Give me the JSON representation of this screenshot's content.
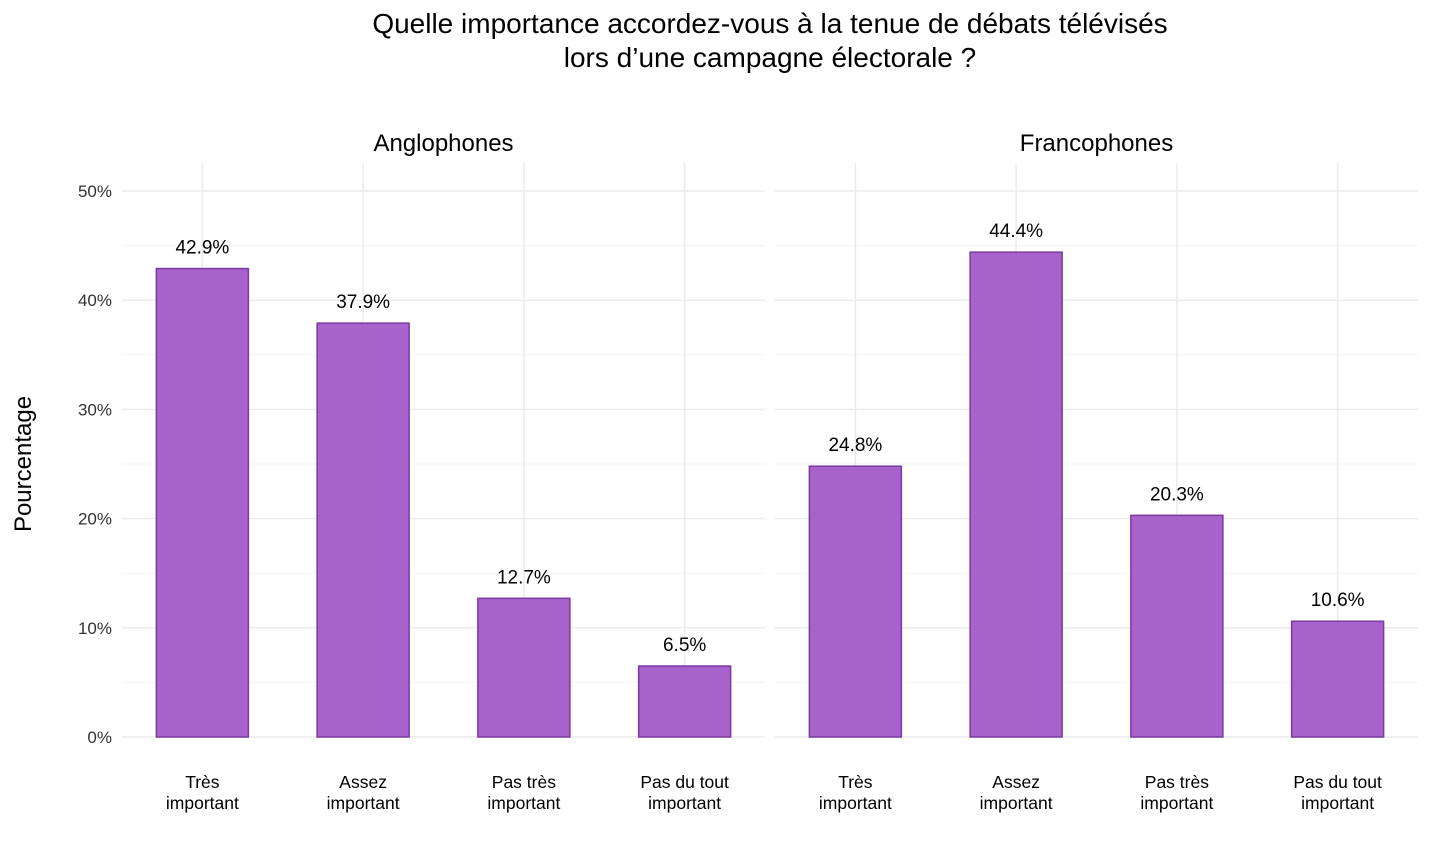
{
  "chart_data": {
    "type": "bar",
    "title": "Quelle importance accordez-vous à la tenue de débats télévisés\nlors d’une campagne électorale ?",
    "ylabel": "Pourcentage",
    "xlabel": "",
    "ylim": [
      0,
      50
    ],
    "yticks": [
      "0%",
      "10%",
      "20%",
      "30%",
      "40%",
      "50%"
    ],
    "ytick_values": [
      0,
      10,
      20,
      30,
      40,
      50
    ],
    "grid": true,
    "categories": [
      "Très\nimportant",
      "Assez\nimportant",
      "Pas très\nimportant",
      "Pas du tout\nimportant"
    ],
    "colors": {
      "fill": "#a862cc",
      "stroke": "#7a3aa0",
      "grid": "#ebebeb"
    },
    "panels": [
      {
        "name": "Anglophones",
        "values": [
          42.9,
          37.9,
          12.7,
          6.5
        ],
        "labels": [
          "42.9%",
          "37.9%",
          "12.7%",
          "6.5%"
        ]
      },
      {
        "name": "Francophones",
        "values": [
          24.8,
          44.4,
          20.3,
          10.6
        ],
        "labels": [
          "24.8%",
          "44.4%",
          "20.3%",
          "10.6%"
        ]
      }
    ]
  }
}
